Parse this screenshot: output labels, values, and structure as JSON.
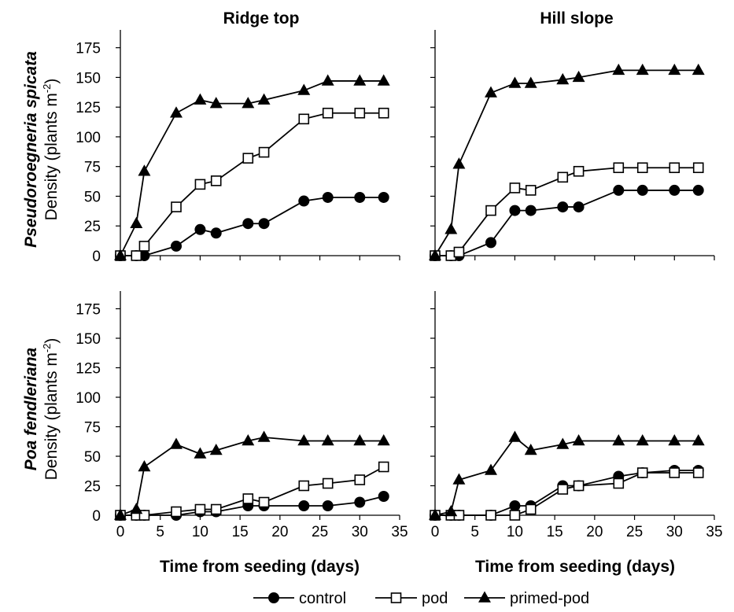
{
  "chart_data": {
    "type": "line",
    "layout": "2x2 small multiples",
    "column_titles": [
      "Ridge top",
      "Hill slope"
    ],
    "row_labels": [
      {
        "species": "Pseudoroegneria spicata",
        "ylabel": "Density (plants m",
        "unit_sup": "-2",
        "unit_close": ")"
      },
      {
        "species": "Poa fendleriana",
        "ylabel": "Density (plants m",
        "unit_sup": "-2",
        "unit_close": ")"
      }
    ],
    "xlabel": "Time from seeding (days)",
    "xlim": [
      0,
      35
    ],
    "ylim": [
      0,
      190
    ],
    "xticks": [
      0,
      5,
      10,
      15,
      20,
      25,
      30,
      35
    ],
    "yticks": [
      0,
      25,
      50,
      75,
      100,
      125,
      150,
      175
    ],
    "grid": false,
    "legend": {
      "placement": "bottom-center",
      "entries": [
        {
          "name": "control",
          "marker": "filled-circle"
        },
        {
          "name": "pod",
          "marker": "open-square"
        },
        {
          "name": "primed-pod",
          "marker": "filled-triangle"
        }
      ]
    },
    "colors": {
      "line": "#000000",
      "marker_fill": "#000000",
      "open_fill": "#ffffff"
    },
    "panels": [
      {
        "row": 0,
        "col": 0,
        "series": [
          {
            "name": "control",
            "x": [
              0,
              2,
              3,
              7,
              10,
              12,
              16,
              18,
              23,
              26,
              30,
              33
            ],
            "y": [
              0,
              0,
              0,
              8,
              22,
              19,
              27,
              27,
              46,
              49,
              49,
              49
            ]
          },
          {
            "name": "pod",
            "x": [
              0,
              2,
              3,
              7,
              10,
              12,
              16,
              18,
              23,
              26,
              30,
              33
            ],
            "y": [
              0,
              0,
              8,
              41,
              60,
              63,
              82,
              87,
              115,
              120,
              120,
              120
            ]
          },
          {
            "name": "primed-pod",
            "x": [
              0,
              2,
              3,
              7,
              10,
              12,
              16,
              18,
              23,
              26,
              30,
              33
            ],
            "y": [
              0,
              27,
              71,
              120,
              131,
              128,
              128,
              131,
              139,
              147,
              147,
              147
            ]
          }
        ]
      },
      {
        "row": 0,
        "col": 1,
        "series": [
          {
            "name": "control",
            "x": [
              0,
              2,
              3,
              7,
              10,
              12,
              16,
              18,
              23,
              26,
              30,
              33
            ],
            "y": [
              0,
              0,
              0,
              11,
              38,
              38,
              41,
              41,
              55,
              55,
              55,
              55
            ]
          },
          {
            "name": "pod",
            "x": [
              0,
              2,
              3,
              7,
              10,
              12,
              16,
              18,
              23,
              26,
              30,
              33
            ],
            "y": [
              0,
              0,
              3,
              38,
              57,
              55,
              66,
              71,
              74,
              74,
              74,
              74
            ]
          },
          {
            "name": "primed-pod",
            "x": [
              0,
              2,
              3,
              7,
              10,
              12,
              16,
              18,
              23,
              26,
              30,
              33
            ],
            "y": [
              0,
              22,
              77,
              137,
              145,
              145,
              148,
              150,
              156,
              156,
              156,
              156
            ]
          }
        ]
      },
      {
        "row": 1,
        "col": 0,
        "series": [
          {
            "name": "control",
            "x": [
              0,
              2,
              3,
              7,
              10,
              12,
              16,
              18,
              23,
              26,
              30,
              33
            ],
            "y": [
              0,
              0,
              0,
              0,
              3,
              3,
              8,
              8,
              8,
              8,
              11,
              16
            ]
          },
          {
            "name": "pod",
            "x": [
              0,
              2,
              3,
              7,
              10,
              12,
              16,
              18,
              23,
              26,
              30,
              33
            ],
            "y": [
              0,
              0,
              0,
              3,
              5,
              5,
              14,
              11,
              25,
              27,
              30,
              41
            ]
          },
          {
            "name": "primed-pod",
            "x": [
              0,
              2,
              3,
              7,
              10,
              12,
              16,
              18,
              23,
              26,
              30,
              33
            ],
            "y": [
              0,
              5,
              41,
              60,
              52,
              55,
              63,
              66,
              63,
              63,
              63,
              63
            ]
          }
        ]
      },
      {
        "row": 1,
        "col": 1,
        "series": [
          {
            "name": "control",
            "x": [
              0,
              2,
              3,
              7,
              10,
              12,
              16,
              18,
              23,
              26,
              30,
              33
            ],
            "y": [
              0,
              0,
              0,
              0,
              8,
              8,
              25,
              25,
              33,
              36,
              38,
              38
            ]
          },
          {
            "name": "pod",
            "x": [
              0,
              2,
              3,
              7,
              10,
              12,
              16,
              18,
              23,
              26,
              30,
              33
            ],
            "y": [
              0,
              0,
              0,
              0,
              0,
              5,
              22,
              25,
              27,
              36,
              36,
              36
            ]
          },
          {
            "name": "primed-pod",
            "x": [
              0,
              2,
              3,
              7,
              10,
              12,
              16,
              18,
              23,
              26,
              30,
              33
            ],
            "y": [
              0,
              3,
              30,
              38,
              66,
              55,
              60,
              63,
              63,
              63,
              63,
              63
            ]
          }
        ]
      }
    ]
  }
}
